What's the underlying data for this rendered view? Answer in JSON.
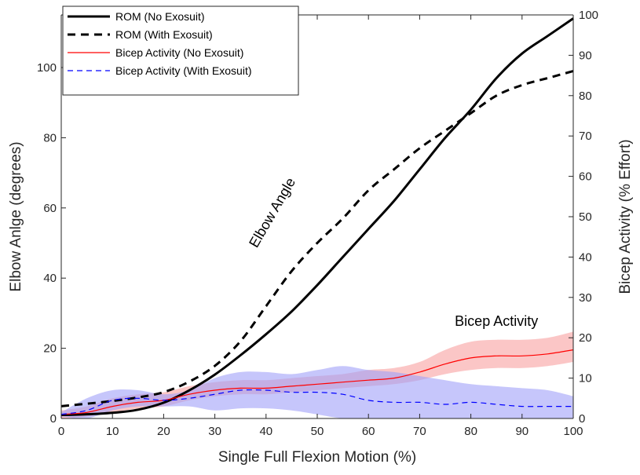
{
  "chart_data": {
    "type": "line",
    "xlabel": "Single Full Flexion Motion (%)",
    "ylabel": "Elbow Anlge (degrees)",
    "ylabel_right": "Bicep Activity (% Effort)",
    "xlim": [
      0,
      100
    ],
    "ylim": [
      0,
      115
    ],
    "ylim_right": [
      0,
      100
    ],
    "x_ticks": [
      0,
      10,
      20,
      30,
      40,
      50,
      60,
      70,
      80,
      90,
      100
    ],
    "y_ticks": [
      0,
      20,
      40,
      60,
      80,
      100
    ],
    "y_ticks_right": [
      0,
      10,
      20,
      30,
      40,
      50,
      60,
      70,
      80,
      90,
      100
    ],
    "grid": false,
    "legend_position": "top-left",
    "x": [
      0,
      5,
      10,
      15,
      20,
      25,
      30,
      35,
      40,
      45,
      50,
      55,
      60,
      65,
      70,
      75,
      80,
      85,
      90,
      95,
      100
    ],
    "series": [
      {
        "name": "ROM (No Exosuit)",
        "axis": "left",
        "color": "#000000",
        "style": "solid",
        "values": [
          1,
          1.2,
          1.6,
          2.5,
          4.5,
          8,
          12.5,
          18,
          24,
          30.5,
          38,
          46,
          54,
          62,
          71,
          80,
          88,
          97,
          104,
          109,
          114
        ]
      },
      {
        "name": "ROM (With Exosuit)",
        "axis": "left",
        "color": "#000000",
        "style": "dashed",
        "values": [
          3.5,
          4.2,
          5,
          6,
          7.5,
          10.5,
          15,
          22,
          32,
          42,
          50,
          57,
          65,
          71,
          77,
          82,
          87,
          92,
          95,
          97,
          99
        ]
      },
      {
        "name": "Bicep Activity (No Exosuit)",
        "axis": "right",
        "color": "#ff0000",
        "band_color": "#f8a0a0",
        "style": "solid",
        "values": [
          1,
          1.5,
          3,
          4,
          4.5,
          6,
          7,
          7.5,
          7.5,
          8,
          8.5,
          9,
          9.5,
          10,
          11.5,
          13.5,
          15,
          15.5,
          15.5,
          16,
          17
        ],
        "upper": [
          2,
          3,
          5,
          6,
          6.5,
          8,
          9,
          9.5,
          9.5,
          10,
          10.5,
          11,
          12,
          12.5,
          14,
          17,
          19,
          19.5,
          19.5,
          20,
          21.5
        ],
        "lower": [
          0,
          0.5,
          1.5,
          2.5,
          3,
          4.5,
          5.5,
          6,
          6,
          6.5,
          7,
          7.5,
          8,
          8.5,
          9.5,
          11,
          12,
          12.5,
          12.5,
          13,
          14
        ]
      },
      {
        "name": "Bicep Activity (With Exosuit)",
        "axis": "right",
        "color": "#0000ff",
        "band_color": "#a0a0f8",
        "style": "dashed",
        "values": [
          1,
          2,
          4.5,
          5,
          4.5,
          5,
          6,
          7,
          7,
          6.5,
          6.5,
          6,
          4.5,
          4,
          4,
          3.5,
          4,
          3.5,
          3,
          3,
          3
        ],
        "upper": [
          1.5,
          5,
          7,
          7,
          6,
          7,
          10,
          11.5,
          11.5,
          11,
          12,
          13,
          12,
          11.5,
          10.5,
          9.5,
          8.5,
          8,
          7.5,
          7,
          5.5
        ],
        "lower": [
          0.5,
          0,
          2,
          3,
          3,
          3,
          2,
          2.5,
          2.5,
          2,
          1,
          0,
          0,
          0,
          0,
          0,
          0,
          0,
          0,
          0,
          0
        ]
      }
    ],
    "annotations": [
      {
        "text": "Elbow Angle",
        "x": 42,
        "y_left": 58,
        "rotation": -60
      },
      {
        "text": "Bicep Activity",
        "x": 85,
        "y_right": 23,
        "rotation": 0
      }
    ]
  }
}
